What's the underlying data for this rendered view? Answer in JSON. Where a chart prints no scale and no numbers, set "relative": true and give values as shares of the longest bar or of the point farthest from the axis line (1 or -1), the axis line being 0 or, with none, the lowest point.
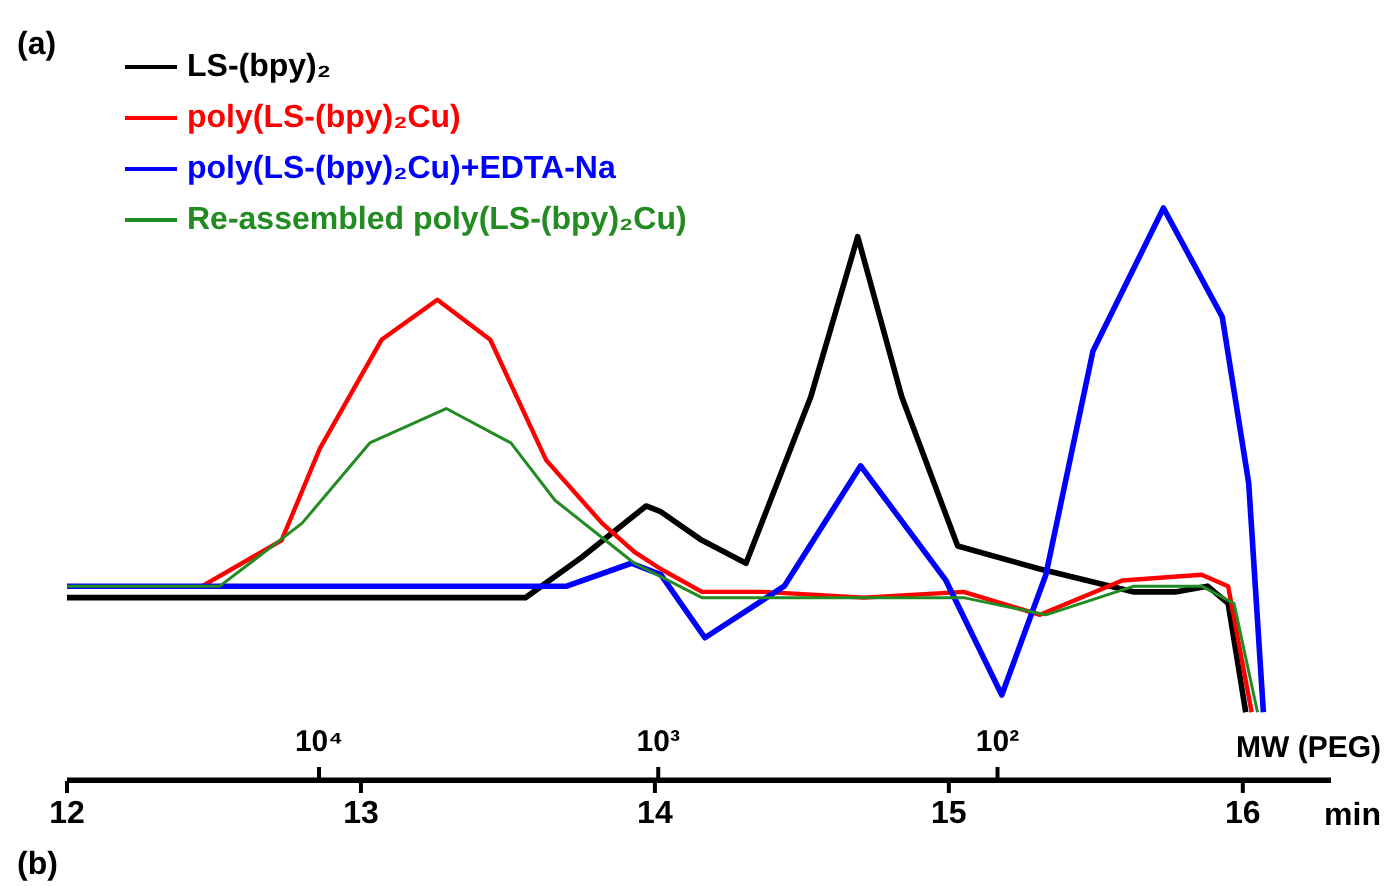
{
  "chart_data": {
    "type": "line",
    "relative": true,
    "xlabel": "min",
    "x2label": "MW (PEG)",
    "xlim": [
      12,
      16.3
    ],
    "xticks": [
      12,
      13,
      14,
      15,
      16
    ],
    "x2lim": [
      55300,
      10.4
    ],
    "x2ticks": [
      {
        "value": 10000,
        "label": "10⁴"
      },
      {
        "value": 1000,
        "label": "10³"
      },
      {
        "value": 100,
        "label": "10²"
      }
    ],
    "log": "x2",
    "legend": "top left",
    "grid": false,
    "annotations": [
      "(a)",
      "(b)"
    ],
    "series": [
      {
        "name": "LS-(bpy)₂",
        "color": "#000000",
        "x": [
          12.0,
          13.56,
          13.75,
          13.97,
          14.02,
          14.16,
          14.31,
          14.53,
          14.69,
          14.84,
          15.03,
          15.31,
          15.63,
          15.77,
          15.88,
          15.95,
          16.01
        ],
        "values": [
          0.32,
          0.32,
          0.39,
          0.48,
          0.47,
          0.42,
          0.38,
          0.67,
          0.95,
          0.67,
          0.41,
          0.37,
          0.33,
          0.33,
          0.34,
          0.31,
          0.12
        ]
      },
      {
        "name": "poly(LS-(bpy)₂Cu)",
        "color": "#ff0000",
        "x": [
          12.0,
          12.46,
          12.73,
          12.86,
          13.07,
          13.26,
          13.44,
          13.63,
          13.82,
          13.93,
          14.02,
          14.16,
          14.37,
          14.71,
          15.05,
          15.31,
          15.59,
          15.86,
          15.95,
          16.03
        ],
        "values": [
          0.34,
          0.34,
          0.42,
          0.58,
          0.77,
          0.84,
          0.77,
          0.56,
          0.45,
          0.4,
          0.37,
          0.33,
          0.33,
          0.32,
          0.33,
          0.29,
          0.35,
          0.36,
          0.34,
          0.12
        ]
      },
      {
        "name": "poly(LS-(bpy)₂Cu)+EDTA-Na",
        "color": "#0000ff",
        "x": [
          12.0,
          13.7,
          13.92,
          14.02,
          14.17,
          14.44,
          14.7,
          14.99,
          15.18,
          15.33,
          15.49,
          15.73,
          15.93,
          16.02,
          16.07
        ],
        "values": [
          0.34,
          0.34,
          0.38,
          0.36,
          0.25,
          0.34,
          0.55,
          0.35,
          0.15,
          0.36,
          0.75,
          1.0,
          0.81,
          0.52,
          0.12
        ]
      },
      {
        "name": "Re-assembled poly(LS-(bpy)₂Cu)",
        "color": "#228b22",
        "x": [
          12.0,
          12.52,
          12.8,
          13.03,
          13.29,
          13.51,
          13.66,
          13.93,
          14.16,
          14.71,
          15.05,
          15.33,
          15.63,
          15.86,
          15.97,
          16.05
        ],
        "values": [
          0.34,
          0.34,
          0.45,
          0.59,
          0.65,
          0.59,
          0.49,
          0.38,
          0.32,
          0.32,
          0.32,
          0.29,
          0.34,
          0.34,
          0.31,
          0.12
        ]
      }
    ]
  }
}
